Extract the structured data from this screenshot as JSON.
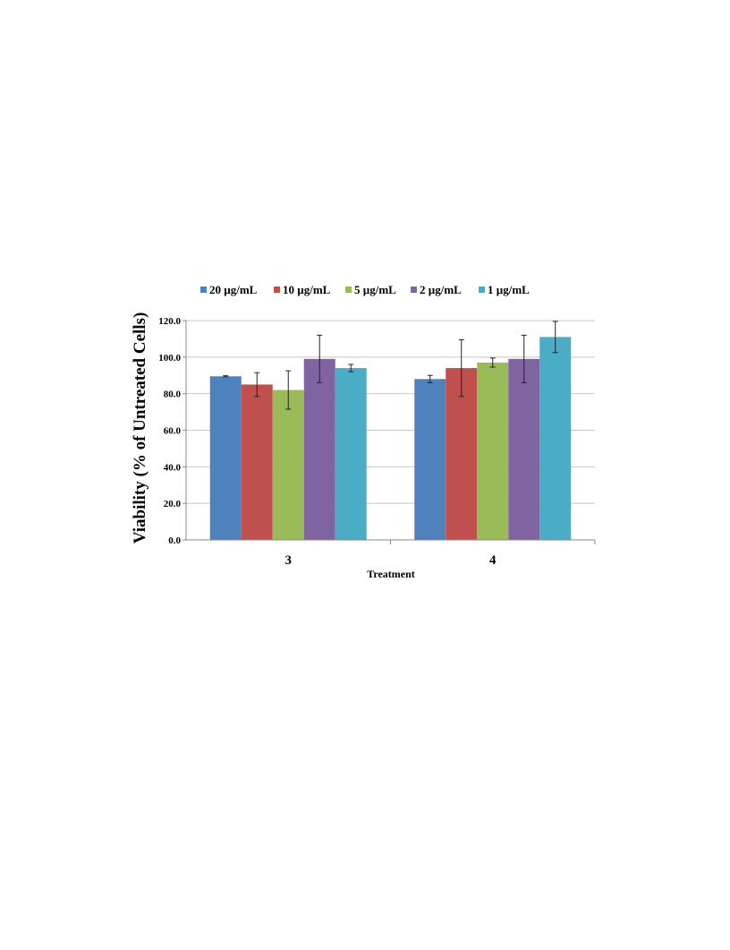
{
  "chart_data": {
    "type": "bar",
    "title": "",
    "xlabel": "Treatment",
    "ylabel": "Viability (% of Untreated Cells)",
    "categories": [
      "3",
      "4"
    ],
    "ylim": [
      0,
      120
    ],
    "yticks": [
      0,
      20,
      40,
      60,
      80,
      100,
      120
    ],
    "ytick_labels": [
      "0.0",
      "20.0",
      "40.0",
      "60.0",
      "80.0",
      "100.0",
      "120.0"
    ],
    "grid": true,
    "legend_position": "top",
    "series": [
      {
        "name": "20 µg/mL",
        "color": "#4f81bd",
        "values": [
          89.5,
          88.0
        ],
        "errors": [
          0.3,
          2.0
        ]
      },
      {
        "name": "10 µg/mL",
        "color": "#c0504d",
        "values": [
          85.0,
          94.0
        ],
        "errors": [
          6.5,
          15.5
        ]
      },
      {
        "name": "5 µg/mL",
        "color": "#9bbb59",
        "values": [
          82.0,
          97.0
        ],
        "errors": [
          10.5,
          2.5
        ]
      },
      {
        "name": "2 µg/mL",
        "color": "#8064a2",
        "values": [
          99.0,
          99.0
        ],
        "errors": [
          13.0,
          13.0
        ]
      },
      {
        "name": "1 µg/mL",
        "color": "#4bacc6",
        "values": [
          94.0,
          111.0
        ],
        "errors": [
          2.0,
          8.5
        ]
      }
    ]
  }
}
